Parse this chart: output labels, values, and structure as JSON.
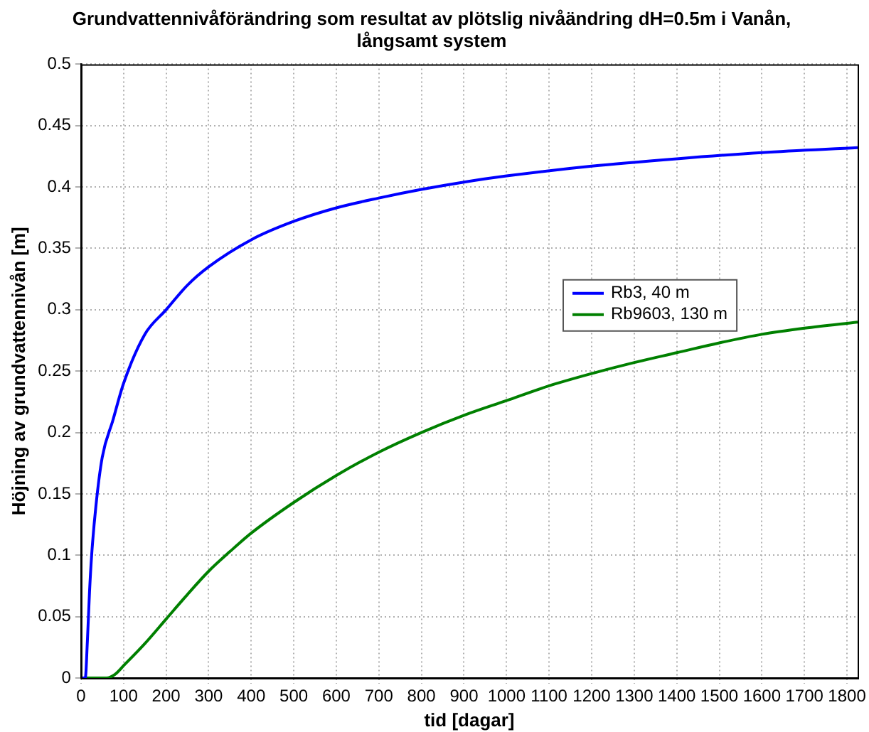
{
  "chart_data": {
    "type": "line",
    "title": "Grundvattennivåförändring som resultat av plötslig nivåändring dH=0.5m i Vanån, långsamt system",
    "xlabel": "tid [dagar]",
    "ylabel": "Höjning av grundvattennivån [m]",
    "xlim": [
      0,
      1825
    ],
    "xticks": [
      0,
      100,
      200,
      300,
      400,
      500,
      600,
      700,
      800,
      900,
      1000,
      1100,
      1200,
      1300,
      1400,
      1500,
      1600,
      1700,
      1800
    ],
    "ylim": [
      0,
      0.5
    ],
    "yticks": [
      0,
      0.05,
      0.1,
      0.15,
      0.2,
      0.25,
      0.3,
      0.35,
      0.4,
      0.45,
      0.5
    ],
    "grid": true,
    "legend": "right",
    "marker": "none",
    "line_style": "solid",
    "series": [
      {
        "name": "Rb3, 40 m",
        "color": "#0000ff",
        "x": [
          0,
          10,
          15,
          20,
          25,
          35,
          50,
          75,
          100,
          150,
          200,
          250,
          300,
          400,
          500,
          600,
          700,
          800,
          900,
          1000,
          1200,
          1400,
          1600,
          1825
        ],
        "values": [
          0,
          0,
          0.03,
          0.07,
          0.1,
          0.14,
          0.18,
          0.21,
          0.24,
          0.28,
          0.3,
          0.32,
          0.335,
          0.357,
          0.372,
          0.383,
          0.391,
          0.398,
          0.404,
          0.409,
          0.417,
          0.423,
          0.428,
          0.432
        ]
      },
      {
        "name": "Rb9603, 130 m",
        "color": "#008000",
        "x": [
          0,
          60,
          80,
          100,
          150,
          200,
          250,
          300,
          350,
          400,
          500,
          600,
          700,
          800,
          900,
          1000,
          1100,
          1200,
          1300,
          1400,
          1500,
          1600,
          1700,
          1825
        ],
        "values": [
          0,
          0,
          0.003,
          0.01,
          0.028,
          0.048,
          0.068,
          0.087,
          0.103,
          0.118,
          0.143,
          0.165,
          0.184,
          0.2,
          0.214,
          0.226,
          0.238,
          0.248,
          0.257,
          0.265,
          0.273,
          0.28,
          0.285,
          0.29
        ]
      }
    ]
  }
}
